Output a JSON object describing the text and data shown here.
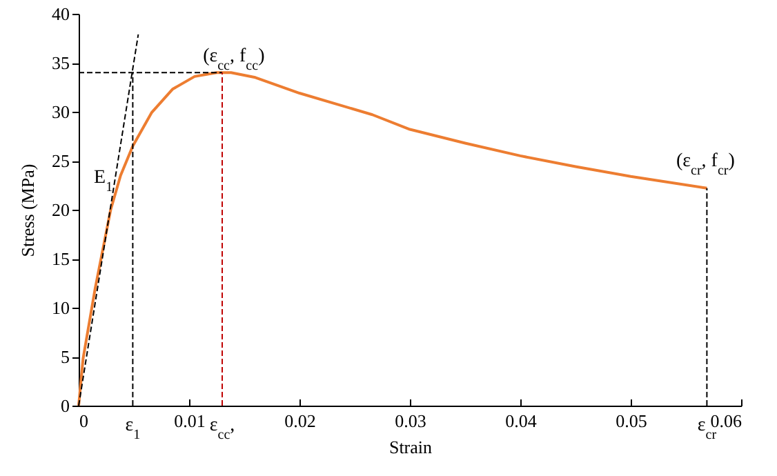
{
  "chart_data": {
    "type": "line",
    "xlabel": "Strain",
    "ylabel": "Stress (MPa)",
    "xlim": [
      0,
      0.06
    ],
    "xticks": [
      0,
      0.01,
      0.02,
      0.03,
      0.04,
      0.05,
      0.06
    ],
    "ylim": [
      0,
      40
    ],
    "yticks": [
      0,
      5,
      10,
      15,
      20,
      25,
      30,
      35,
      40
    ],
    "grid": false,
    "series": [
      {
        "color": "#ed7d31",
        "line_style": "solid",
        "x": [
          0,
          0.0004,
          0.0015,
          0.0029,
          0.0038,
          0.0049,
          0.0066,
          0.0085,
          0.0105,
          0.0125,
          0.0138,
          0.016,
          0.02,
          0.0266,
          0.03,
          0.035,
          0.04,
          0.045,
          0.05,
          0.0569
        ],
        "values": [
          0,
          4.8,
          12,
          20,
          23.5,
          26.5,
          29.9,
          32.3,
          33.6,
          34,
          34,
          33.5,
          31.9,
          29.7,
          28.2,
          26.8,
          25.5,
          24.4,
          23.4,
          22.2
        ]
      },
      {
        "color": "#000000",
        "line_style": "dashed",
        "x": [
          0,
          0.0054
        ],
        "values": [
          0,
          37.9
        ]
      },
      {
        "color": "#000000",
        "line_style": "dashed",
        "x": [
          0,
          0.013
        ],
        "values": [
          34,
          34
        ]
      },
      {
        "color": "#000000",
        "line_style": "dashed",
        "x": [
          0.0049,
          0.0049
        ],
        "values": [
          0,
          34
        ]
      },
      {
        "color": "#c00000",
        "line_style": "dashed",
        "x": [
          0.013,
          0.013
        ],
        "values": [
          0,
          34
        ]
      },
      {
        "color": "#000000",
        "line_style": "dashed",
        "x": [
          0.0569,
          0.0569
        ],
        "values": [
          0,
          22.2
        ]
      }
    ],
    "annotations": [
      {
        "text": "E$_{1}$",
        "x": 0.0032,
        "y": 23
      },
      {
        "text": "(ε$_{cc}$, f$_{cc}$)",
        "x": 0.0138,
        "y": 34
      },
      {
        "text": "(ε$_{cr}$, f$_{cr}$)",
        "x": 0.0569,
        "y": 22.2
      },
      {
        "text": "ε$_{1}$",
        "x": 0.0049,
        "y": 0
      },
      {
        "text": "ε$_{cc}$,",
        "x": 0.013,
        "y": 0
      },
      {
        "text": "ε$_{cr}$",
        "x": 0.0569,
        "y": 0
      }
    ]
  }
}
